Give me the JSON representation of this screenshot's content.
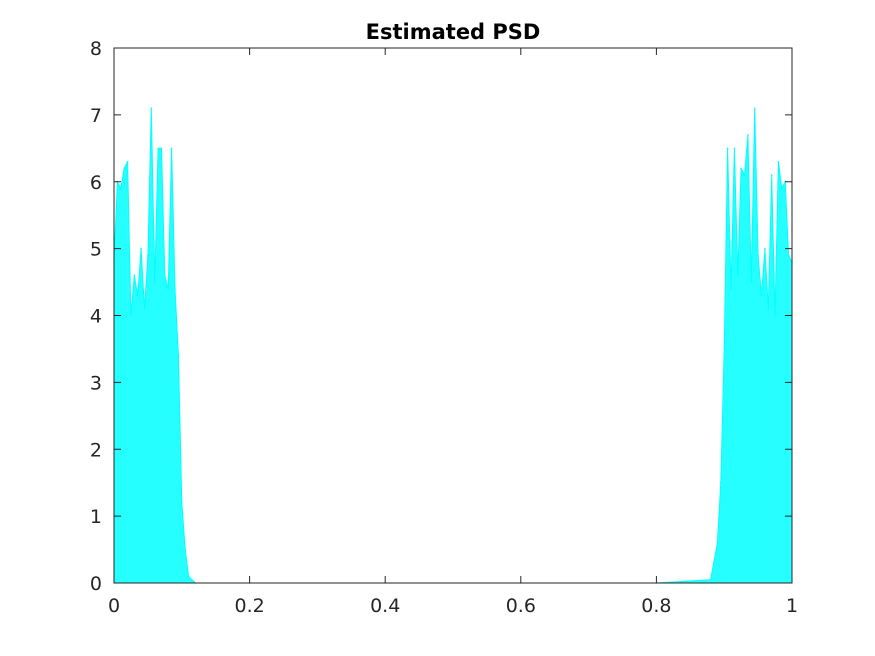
{
  "chart_data": {
    "type": "line",
    "title": "Estimated PSD",
    "xlabel": "",
    "ylabel": "",
    "xlim": [
      0,
      1
    ],
    "ylim": [
      0,
      8
    ],
    "xticks": [
      "0",
      "0.2",
      "0.4",
      "0.6",
      "0.8",
      "1"
    ],
    "yticks": [
      "0",
      "1",
      "2",
      "3",
      "4",
      "5",
      "6",
      "7",
      "8"
    ],
    "grid": false,
    "legend": "none",
    "series": [
      {
        "color": "#00ffff",
        "x": [
          0.0,
          0.005,
          0.01,
          0.015,
          0.02,
          0.025,
          0.03,
          0.035,
          0.04,
          0.045,
          0.05,
          0.055,
          0.06,
          0.065,
          0.07,
          0.075,
          0.08,
          0.085,
          0.09,
          0.095,
          0.1,
          0.105,
          0.11,
          0.12,
          0.2,
          0.4,
          0.6,
          0.8,
          0.88,
          0.89,
          0.895,
          0.9,
          0.905,
          0.91,
          0.915,
          0.92,
          0.925,
          0.93,
          0.935,
          0.94,
          0.945,
          0.95,
          0.955,
          0.96,
          0.965,
          0.97,
          0.975,
          0.98,
          0.985,
          0.99,
          0.995,
          1.0
        ],
        "values": [
          4.8,
          6.0,
          5.9,
          6.2,
          6.3,
          4.0,
          4.6,
          4.3,
          5.0,
          4.1,
          4.9,
          7.1,
          4.5,
          6.5,
          6.5,
          4.6,
          4.4,
          6.5,
          4.4,
          3.4,
          1.2,
          0.5,
          0.1,
          0.0,
          0.0,
          0.0,
          0.0,
          0.0,
          0.05,
          0.6,
          1.5,
          3.5,
          6.5,
          4.4,
          6.5,
          4.6,
          6.2,
          6.1,
          6.7,
          4.5,
          7.1,
          4.9,
          4.3,
          5.0,
          4.1,
          6.1,
          4.0,
          6.3,
          5.9,
          6.0,
          4.9,
          4.8
        ]
      }
    ]
  }
}
